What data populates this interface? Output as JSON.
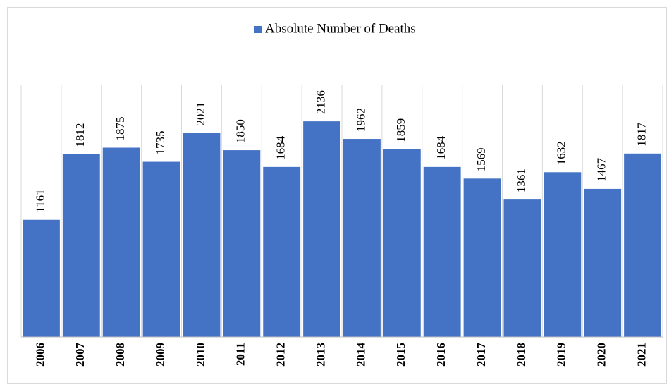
{
  "chart_data": {
    "type": "bar",
    "categories": [
      "2006",
      "2007",
      "2008",
      "2009",
      "2010",
      "2011",
      "2012",
      "2013",
      "2014",
      "2015",
      "2016",
      "2017",
      "2018",
      "2019",
      "2020",
      "2021"
    ],
    "series": [
      {
        "name": "Absolute Number of Deaths",
        "color": "#4472c4",
        "values": [
          1161,
          1812,
          1875,
          1735,
          2021,
          1850,
          1684,
          2136,
          1962,
          1859,
          1684,
          1569,
          1361,
          1632,
          1467,
          1817
        ]
      }
    ],
    "ylim": [
      0,
      2500
    ],
    "legend": "top",
    "grid": "vertical"
  }
}
